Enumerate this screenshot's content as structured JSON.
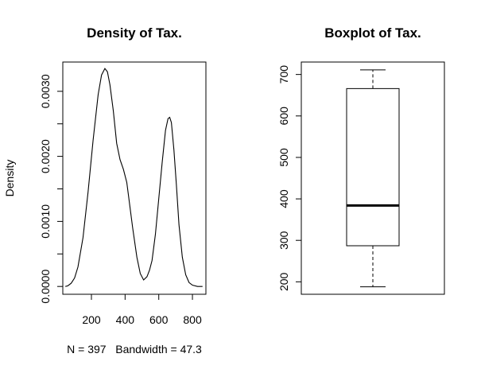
{
  "chart_data": [
    {
      "type": "line",
      "title": "Density of Tax.",
      "xlabel": "N = 397   Bandwidth = 47.3",
      "ylabel": "Density",
      "x_ticks": [
        200,
        400,
        600,
        800
      ],
      "x_tick_labels": [
        "200",
        "400",
        "600",
        "800"
      ],
      "y_ticks": [
        0.0,
        0.0005,
        0.001,
        0.0015,
        0.002,
        0.0025,
        0.003
      ],
      "y_tick_labels": [
        "0.0000",
        "",
        "0.0010",
        "",
        "0.0020",
        "",
        "0.0030"
      ],
      "xlim": [
        30,
        880
      ],
      "ylim": [
        -0.00012,
        0.00345
      ],
      "grid": false,
      "series": [
        {
          "x": [
            45,
            60,
            80,
            100,
            120,
            150,
            180,
            210,
            240,
            260,
            280,
            295,
            310,
            330,
            350,
            370,
            390,
            410,
            425,
            445,
            470,
            490,
            510,
            530,
            545,
            560,
            580,
            600,
            620,
            640,
            655,
            665,
            675,
            690,
            705,
            720,
            740,
            760,
            780,
            800,
            830,
            860
          ],
          "y": [
            0.0,
            1e-05,
            5e-05,
            0.00013,
            0.0003,
            0.00075,
            0.00145,
            0.00225,
            0.00295,
            0.00325,
            0.00335,
            0.0033,
            0.0031,
            0.0027,
            0.0022,
            0.00195,
            0.0018,
            0.0016,
            0.0013,
            0.0009,
            0.00045,
            0.0002,
            0.0001,
            0.00015,
            0.00025,
            0.0004,
            0.0008,
            0.00135,
            0.0019,
            0.0024,
            0.00258,
            0.0026,
            0.00252,
            0.0021,
            0.00155,
            0.00095,
            0.00045,
            0.00018,
            6e-05,
            2e-05,
            0.0,
            0.0
          ]
        }
      ]
    },
    {
      "type": "box",
      "title": "Boxplot of Tax.",
      "y_ticks": [
        200,
        300,
        400,
        500,
        600,
        700
      ],
      "y_tick_labels": [
        "200",
        "300",
        "400",
        "500",
        "600",
        "700"
      ],
      "ylim": [
        170,
        730
      ],
      "grid": false,
      "box": {
        "min": 188,
        "q1": 287,
        "median": 384,
        "q3": 666,
        "max": 711
      }
    }
  ]
}
